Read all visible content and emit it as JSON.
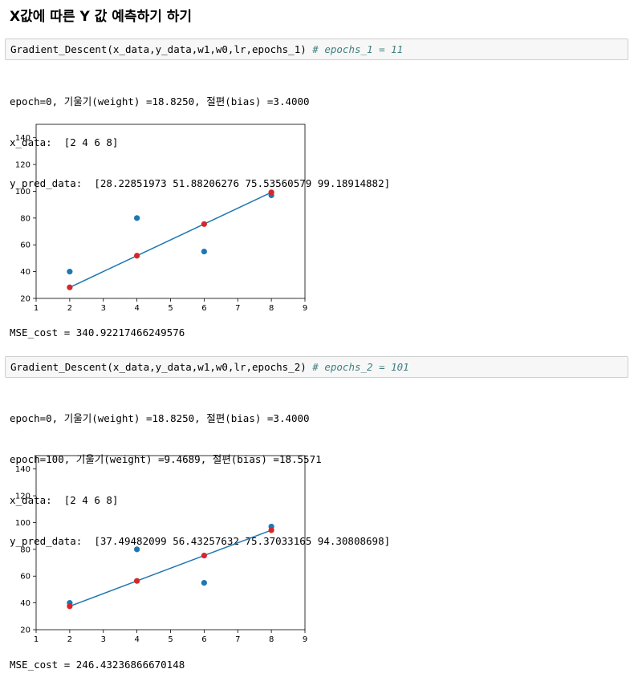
{
  "page": {
    "title": "X값에 따른 Y 값 예측하기 하기"
  },
  "cells": [
    {
      "code": "Gradient_Descent(x_data,y_data,w1,w0,lr,epochs_1)",
      "comment": "# epochs_1 = 11",
      "output_lines": [
        "epoch=0, 기울기(weight) =18.8250, 절편(bias) =3.4000",
        "x_data:  [2 4 6 8]",
        "y_pred_data:  [28.22851973 51.88206276 75.53560579 99.18914882]"
      ],
      "mse": "MSE_cost = 340.92217466249576"
    },
    {
      "code": "Gradient_Descent(x_data,y_data,w1,w0,lr,epochs_2)",
      "comment": "# epochs_2 = 101",
      "output_lines": [
        "epoch=0, 기울기(weight) =18.8250, 절편(bias) =3.4000",
        "epoch=100, 기울기(weight) =9.4689, 절편(bias) =18.5571",
        "x_data:  [2 4 6 8]",
        "y_pred_data:  [37.49482099 56.43257632 75.37033165 94.30808698]"
      ],
      "mse": "MSE_cost = 246.43236866670148"
    }
  ],
  "chart_data": [
    {
      "type": "scatter",
      "xlim": [
        1,
        9
      ],
      "ylim": [
        20,
        150
      ],
      "xticks": [
        1,
        2,
        3,
        4,
        5,
        6,
        7,
        8,
        9
      ],
      "yticks": [
        20,
        40,
        60,
        80,
        100,
        120,
        140
      ],
      "series": [
        {
          "kind": "scatter",
          "color": "#1f77b4",
          "x": [
            2,
            4,
            6,
            8
          ],
          "y": [
            40,
            80,
            55,
            97
          ]
        },
        {
          "kind": "line",
          "color": "#1f77b4",
          "x": [
            2,
            4,
            6,
            8
          ],
          "y": [
            28.22851973,
            51.88206276,
            75.53560579,
            99.18914882
          ]
        },
        {
          "kind": "scatter",
          "color": "#d62728",
          "x": [
            2,
            4,
            6,
            8
          ],
          "y": [
            28.22851973,
            51.88206276,
            75.53560579,
            99.18914882
          ]
        }
      ]
    },
    {
      "type": "scatter",
      "xlim": [
        1,
        9
      ],
      "ylim": [
        20,
        150
      ],
      "xticks": [
        1,
        2,
        3,
        4,
        5,
        6,
        7,
        8,
        9
      ],
      "yticks": [
        20,
        40,
        60,
        80,
        100,
        120,
        140
      ],
      "series": [
        {
          "kind": "scatter",
          "color": "#1f77b4",
          "x": [
            2,
            4,
            6,
            8
          ],
          "y": [
            40,
            80,
            55,
            97
          ]
        },
        {
          "kind": "line",
          "color": "#1f77b4",
          "x": [
            2,
            4,
            6,
            8
          ],
          "y": [
            37.49482099,
            56.43257632,
            75.37033165,
            94.30808698
          ]
        },
        {
          "kind": "scatter",
          "color": "#d62728",
          "x": [
            2,
            4,
            6,
            8
          ],
          "y": [
            37.49482099,
            56.43257632,
            75.37033165,
            94.30808698
          ]
        }
      ]
    }
  ]
}
